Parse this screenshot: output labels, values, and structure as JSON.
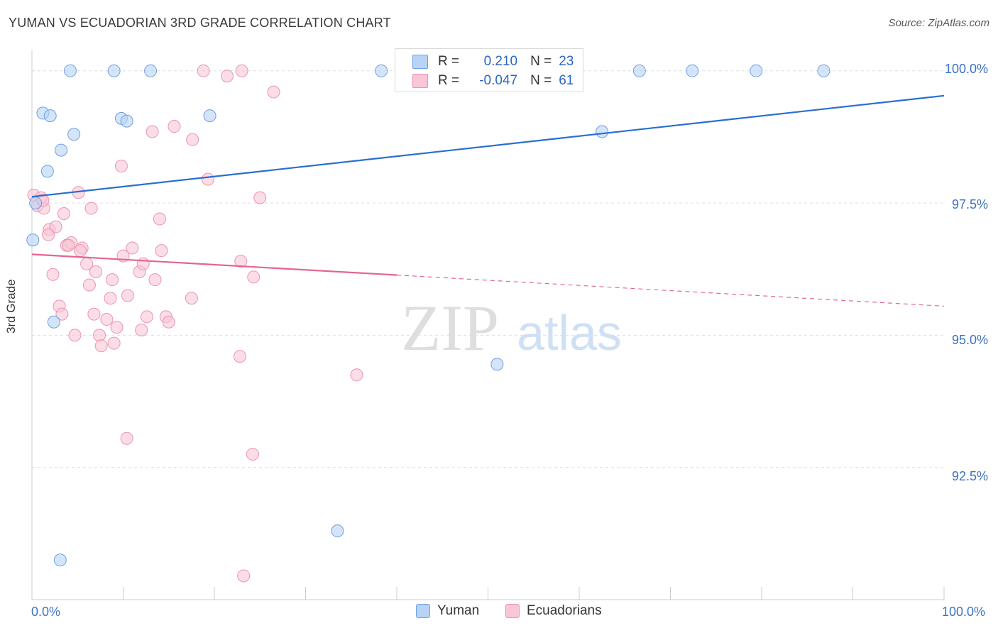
{
  "header": {
    "title": "YUMAN VS ECUADORIAN 3RD GRADE CORRELATION CHART",
    "source": "Source: ZipAtlas.com"
  },
  "colors": {
    "yuman_fill": "#b8d3f5",
    "yuman_stroke": "#6f9fe0",
    "yuman_line": "#2a6dd1",
    "ecuador_fill": "#f9c6d6",
    "ecuador_stroke": "#ec93b0",
    "ecuador_line": "#e4648f",
    "grid": "#dddddd",
    "axis_text": "#3d72c4"
  },
  "stats": {
    "yuman": {
      "r_label": "R =",
      "r_value": "0.210",
      "n_label": "N =",
      "n_value": "23"
    },
    "ecuadorian": {
      "r_label": "R =",
      "r_value": "-0.047",
      "n_label": "N =",
      "n_value": "61"
    }
  },
  "watermark": {
    "zip": "ZIP",
    "atlas": "atlas"
  },
  "chart_data": {
    "type": "scatter",
    "title": "YUMAN VS ECUADORIAN 3RD GRADE CORRELATION CHART",
    "xlabel": "",
    "ylabel": "3rd Grade",
    "xlim": [
      0,
      100
    ],
    "ylim": [
      90.0,
      100.4
    ],
    "x_tick_labels": [
      "0.0%",
      "100.0%"
    ],
    "y_ticks": [
      92.5,
      95.0,
      97.5,
      100.0
    ],
    "y_tick_labels": [
      "92.5%",
      "95.0%",
      "97.5%",
      "100.0%"
    ],
    "grid": true,
    "legend": [
      "Yuman",
      "Ecuadorians"
    ],
    "series": [
      {
        "name": "Yuman",
        "points": [
          [
            0.1,
            96.8
          ],
          [
            1.2,
            99.2
          ],
          [
            2.0,
            99.15
          ],
          [
            4.2,
            100.0
          ],
          [
            9.0,
            100.0
          ],
          [
            13.0,
            100.0
          ],
          [
            4.6,
            98.8
          ],
          [
            3.2,
            98.5
          ],
          [
            1.7,
            98.1
          ],
          [
            9.8,
            99.1
          ],
          [
            10.4,
            99.05
          ],
          [
            19.5,
            99.15
          ],
          [
            0.4,
            97.5
          ],
          [
            2.4,
            95.25
          ],
          [
            38.3,
            100.0
          ],
          [
            62.5,
            98.85
          ],
          [
            66.6,
            100.0
          ],
          [
            72.4,
            100.0
          ],
          [
            79.4,
            100.0
          ],
          [
            86.8,
            100.0
          ],
          [
            51.0,
            94.45
          ],
          [
            33.5,
            91.3
          ],
          [
            3.1,
            90.75
          ]
        ],
        "trend": {
          "x": [
            0,
            100
          ],
          "y": [
            97.62,
            99.53
          ],
          "dashed_from": null
        }
      },
      {
        "name": "Ecuadorians",
        "points": [
          [
            0.2,
            97.65
          ],
          [
            0.6,
            97.45
          ],
          [
            1.3,
            97.4
          ],
          [
            1.0,
            97.6
          ],
          [
            3.5,
            97.3
          ],
          [
            5.1,
            97.7
          ],
          [
            6.5,
            97.4
          ],
          [
            1.9,
            97.0
          ],
          [
            2.6,
            97.05
          ],
          [
            1.8,
            96.9
          ],
          [
            3.8,
            96.7
          ],
          [
            4.3,
            96.75
          ],
          [
            5.5,
            96.65
          ],
          [
            5.3,
            96.6
          ],
          [
            10.0,
            96.5
          ],
          [
            11.0,
            96.65
          ],
          [
            14.2,
            96.6
          ],
          [
            14.0,
            97.2
          ],
          [
            6.0,
            96.35
          ],
          [
            7.0,
            96.2
          ],
          [
            11.8,
            96.2
          ],
          [
            12.2,
            96.35
          ],
          [
            2.3,
            96.15
          ],
          [
            8.8,
            96.05
          ],
          [
            6.3,
            95.95
          ],
          [
            8.6,
            95.7
          ],
          [
            10.5,
            95.75
          ],
          [
            17.5,
            95.7
          ],
          [
            3.0,
            95.55
          ],
          [
            3.3,
            95.4
          ],
          [
            6.8,
            95.4
          ],
          [
            8.2,
            95.3
          ],
          [
            9.3,
            95.15
          ],
          [
            12.6,
            95.35
          ],
          [
            14.7,
            95.35
          ],
          [
            15.0,
            95.25
          ],
          [
            12.0,
            95.1
          ],
          [
            4.7,
            95.0
          ],
          [
            7.4,
            95.0
          ],
          [
            7.6,
            94.8
          ],
          [
            9.0,
            94.85
          ],
          [
            22.8,
            94.6
          ],
          [
            23.0,
            100.0
          ],
          [
            18.8,
            100.0
          ],
          [
            21.4,
            99.9
          ],
          [
            26.5,
            99.6
          ],
          [
            13.2,
            98.85
          ],
          [
            15.6,
            98.95
          ],
          [
            17.6,
            98.7
          ],
          [
            9.8,
            98.2
          ],
          [
            19.3,
            97.95
          ],
          [
            25.0,
            97.6
          ],
          [
            22.9,
            96.4
          ],
          [
            24.3,
            96.1
          ],
          [
            35.6,
            94.25
          ],
          [
            10.4,
            93.05
          ],
          [
            24.2,
            92.75
          ],
          [
            23.2,
            90.45
          ],
          [
            1.2,
            97.55
          ],
          [
            4.0,
            96.7
          ],
          [
            13.5,
            96.05
          ]
        ],
        "trend": {
          "x": [
            0,
            100
          ],
          "y": [
            96.53,
            95.55
          ],
          "dashed_from": 40
        }
      }
    ]
  }
}
